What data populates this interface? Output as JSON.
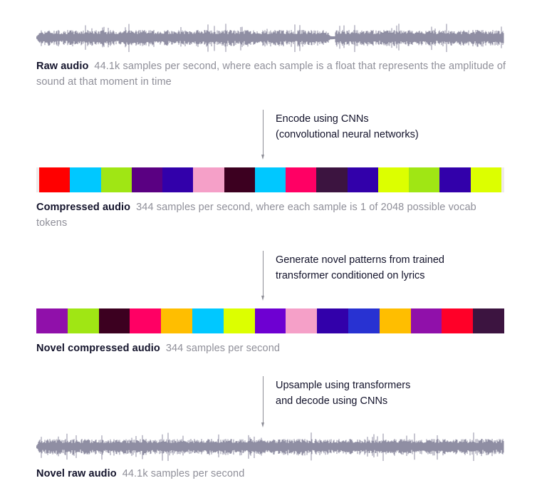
{
  "diagram": {
    "stages": {
      "raw_audio": {
        "title": "Raw audio",
        "description": "44.1k samples per second, where each sample is a float that represents the amplitude of sound at that moment in time"
      },
      "compressed_audio": {
        "title": "Compressed audio",
        "description": "344 samples per second, where each sample is 1 of 2048 possible vocab tokens",
        "tokens": [
          "#ff0000",
          "#00c8ff",
          "#a0e614",
          "#5a0082",
          "#3200aa",
          "#f5a0c8",
          "#3c0020",
          "#00c8ff",
          "#ff0064",
          "#3c1440",
          "#3200aa",
          "#dcff00",
          "#a0e614",
          "#3200aa",
          "#dcff00"
        ]
      },
      "novel_compressed_audio": {
        "title": "Novel compressed audio",
        "description": "344 samples per second",
        "tokens": [
          "#9010aa",
          "#a0e614",
          "#3c0020",
          "#ff0064",
          "#ffbe00",
          "#00c8ff",
          "#dcff00",
          "#6e00d2",
          "#f5a0c8",
          "#3200aa",
          "#2832d2",
          "#ffbe00",
          "#9010aa",
          "#ff0028",
          "#3c1440"
        ]
      },
      "novel_raw_audio": {
        "title": "Novel raw audio",
        "description": "44.1k samples per second"
      }
    },
    "steps": [
      {
        "line1": "Encode using CNNs",
        "line2": "(convolutional neural networks)"
      },
      {
        "line1": "Generate novel patterns from trained",
        "line2": "transformer conditioned on lyrics"
      },
      {
        "line1": "Upsample using transformers",
        "line2": "and decode using CNNs"
      }
    ],
    "colors": {
      "waveform": "#8f8ea3",
      "arrow": "#8d8d96",
      "title_text": "#13132b",
      "muted_text": "#8f8f99"
    }
  }
}
